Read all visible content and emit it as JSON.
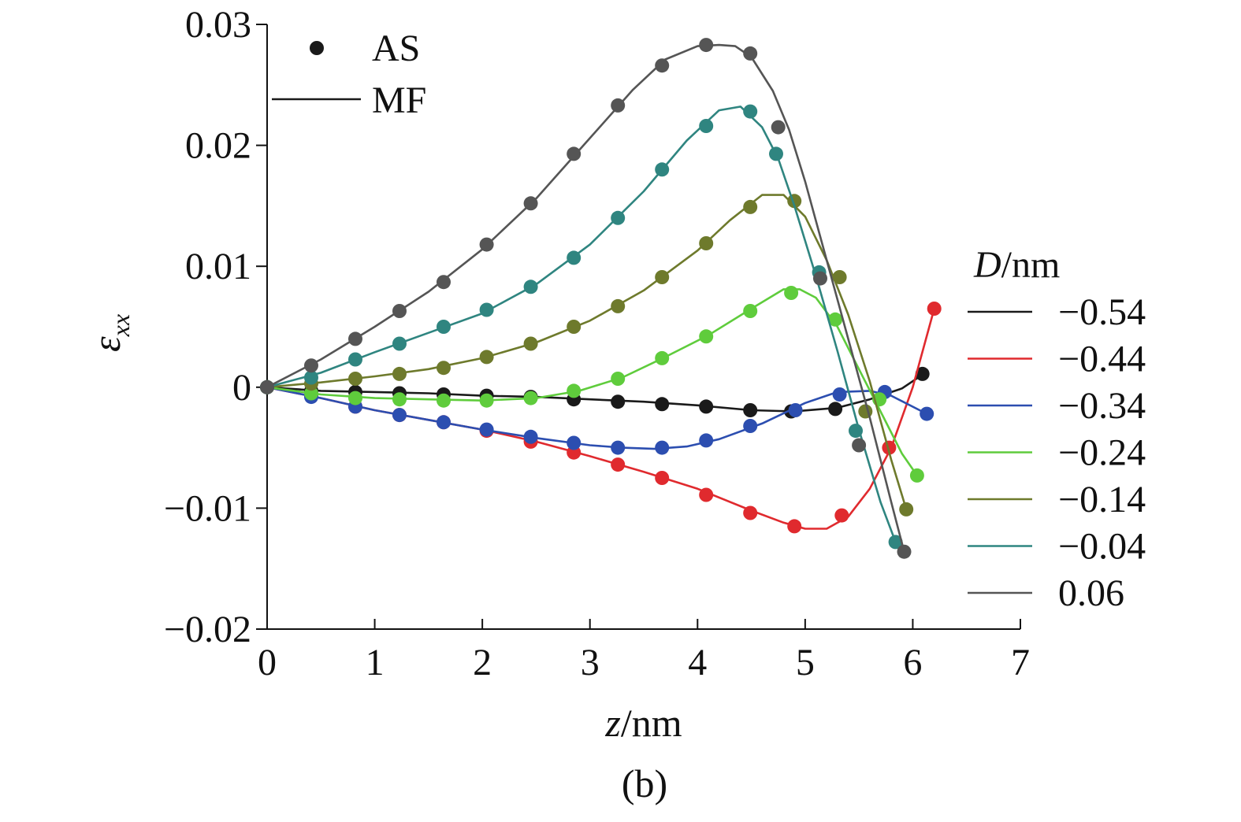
{
  "chart_data": {
    "type": "line",
    "caption": "(b)",
    "xlabel": {
      "var": "z",
      "unit": "/nm"
    },
    "ylabel": {
      "var": "ε",
      "sub": "xx"
    },
    "xlim": [
      0,
      7
    ],
    "ylim": [
      -0.02,
      0.03
    ],
    "x_ticks": [
      0,
      1,
      2,
      3,
      4,
      5,
      6,
      7
    ],
    "x_tick_labels": [
      "0",
      "1",
      "2",
      "3",
      "4",
      "5",
      "6",
      "7"
    ],
    "y_ticks": [
      -0.02,
      -0.01,
      0,
      0.01,
      0.02,
      0.03
    ],
    "y_tick_labels": [
      "−0.02",
      "−0.01",
      "0",
      "0.01",
      "0.02",
      "0.03"
    ],
    "grid": false,
    "marker_legend": {
      "placement": "top-left",
      "items": [
        {
          "label": "AS",
          "style": "marker"
        },
        {
          "label": "MF",
          "style": "line"
        }
      ]
    },
    "legend": {
      "title": {
        "var": "D",
        "unit": "/nm"
      },
      "placement": "right"
    },
    "series": [
      {
        "name": "−0.54",
        "color": "#1a1a1a",
        "as_x": [
          0,
          0.41,
          0.82,
          1.23,
          1.64,
          2.04,
          2.45,
          2.85,
          3.26,
          3.67,
          4.08,
          4.49,
          4.87,
          5.28,
          6.09
        ],
        "as_y": [
          0,
          -0.0003,
          -0.0004,
          -0.0005,
          -0.0006,
          -0.0007,
          -0.0008,
          -0.001,
          -0.0012,
          -0.0014,
          -0.0016,
          -0.0019,
          -0.002,
          -0.0018,
          0.0011
        ],
        "mf_x": [
          0,
          0.5,
          1,
          1.5,
          2,
          2.5,
          3,
          3.5,
          4,
          4.5,
          4.9,
          5.3,
          5.6,
          5.9,
          6.1
        ],
        "mf_y": [
          0,
          -0.0003,
          -0.0004,
          -0.0005,
          -0.0007,
          -0.0008,
          -0.001,
          -0.0012,
          -0.0015,
          -0.0019,
          -0.002,
          -0.0017,
          -0.001,
          -0.0001,
          0.0011
        ]
      },
      {
        "name": "−0.44",
        "color": "#e02a2e",
        "as_x": [
          0,
          0.41,
          0.82,
          1.23,
          1.64,
          2.04,
          2.45,
          2.85,
          3.26,
          3.67,
          4.08,
          4.49,
          4.9,
          5.34,
          5.78,
          6.2
        ],
        "as_y": [
          0,
          -0.0007,
          -0.0016,
          -0.0023,
          -0.0029,
          -0.0036,
          -0.0045,
          -0.0054,
          -0.0064,
          -0.0075,
          -0.0089,
          -0.0104,
          -0.0115,
          -0.0106,
          -0.005,
          0.0065
        ],
        "mf_x": [
          0,
          0.5,
          1,
          1.5,
          2,
          2.5,
          3,
          3.5,
          4,
          4.5,
          4.8,
          5.0,
          5.2,
          5.4,
          5.6,
          5.8,
          6.0,
          6.2
        ],
        "mf_y": [
          0,
          -0.0009,
          -0.0019,
          -0.0027,
          -0.0035,
          -0.0045,
          -0.0057,
          -0.007,
          -0.0084,
          -0.0102,
          -0.0112,
          -0.0117,
          -0.0117,
          -0.0107,
          -0.0084,
          -0.005,
          0,
          0.0065
        ]
      },
      {
        "name": "−0.34",
        "color": "#2c4eb0",
        "as_x": [
          0,
          0.41,
          0.82,
          1.23,
          1.64,
          2.04,
          2.45,
          2.85,
          3.26,
          3.67,
          4.08,
          4.49,
          4.91,
          5.32,
          5.74,
          6.13
        ],
        "as_y": [
          0,
          -0.0008,
          -0.0016,
          -0.0023,
          -0.0029,
          -0.0035,
          -0.0041,
          -0.0046,
          -0.005,
          -0.005,
          -0.0044,
          -0.0032,
          -0.0019,
          -0.0006,
          -0.0004,
          -0.0022
        ],
        "mf_x": [
          0,
          0.5,
          1,
          1.5,
          2,
          2.5,
          3,
          3.3,
          3.6,
          3.9,
          4.2,
          4.6,
          5.0,
          5.3,
          5.6,
          5.8,
          6.13
        ],
        "mf_y": [
          0,
          -0.0009,
          -0.0019,
          -0.0027,
          -0.0035,
          -0.0042,
          -0.0048,
          -0.005,
          -0.0051,
          -0.0049,
          -0.0043,
          -0.003,
          -0.0013,
          -0.0004,
          -0.0003,
          -0.0007,
          -0.0022
        ]
      },
      {
        "name": "−0.24",
        "color": "#5fcc3c",
        "as_x": [
          0,
          0.41,
          0.82,
          1.23,
          1.64,
          2.04,
          2.45,
          2.85,
          3.26,
          3.67,
          4.08,
          4.49,
          4.87,
          5.28,
          5.69,
          6.04
        ],
        "as_y": [
          0,
          -0.0005,
          -0.0009,
          -0.001,
          -0.0011,
          -0.0011,
          -0.0009,
          -0.0003,
          0.0007,
          0.0024,
          0.0042,
          0.0063,
          0.0078,
          0.0056,
          -0.001,
          -0.0073
        ],
        "mf_x": [
          0,
          0.5,
          1,
          1.5,
          2,
          2.5,
          2.9,
          3.3,
          3.7,
          4.1,
          4.5,
          4.8,
          4.95,
          5.1,
          5.3,
          5.5,
          5.7,
          5.9,
          6.04
        ],
        "mf_y": [
          0,
          -0.0006,
          -0.0009,
          -0.001,
          -0.0011,
          -0.0009,
          -0.0003,
          0.0008,
          0.0025,
          0.0043,
          0.0065,
          0.0081,
          0.0081,
          0.0074,
          0.005,
          0.0015,
          -0.002,
          -0.0055,
          -0.0073
        ]
      },
      {
        "name": "−0.14",
        "color": "#6e7a2c",
        "as_x": [
          0,
          0.41,
          0.82,
          1.23,
          1.64,
          2.04,
          2.45,
          2.85,
          3.26,
          3.67,
          4.08,
          4.49,
          4.9,
          5.32,
          5.56,
          5.94
        ],
        "as_y": [
          0,
          0.0003,
          0.0007,
          0.0011,
          0.0016,
          0.0025,
          0.0036,
          0.005,
          0.0067,
          0.0091,
          0.0119,
          0.0149,
          0.0154,
          0.0091,
          -0.002,
          -0.0101
        ],
        "mf_x": [
          0,
          0.5,
          1,
          1.5,
          2,
          2.5,
          3,
          3.5,
          4,
          4.3,
          4.6,
          4.8,
          5.0,
          5.2,
          5.4,
          5.6,
          5.8,
          5.94
        ],
        "mf_y": [
          0,
          0.0004,
          0.0009,
          0.0015,
          0.0024,
          0.0037,
          0.0055,
          0.008,
          0.0113,
          0.0138,
          0.0159,
          0.0159,
          0.0141,
          0.0105,
          0.006,
          0.0005,
          -0.006,
          -0.0101
        ]
      },
      {
        "name": "−0.04",
        "color": "#2f8580",
        "as_x": [
          0,
          0.41,
          0.82,
          1.23,
          1.64,
          2.04,
          2.45,
          2.85,
          3.26,
          3.67,
          4.08,
          4.49,
          4.73,
          5.13,
          5.47,
          5.84
        ],
        "as_y": [
          0,
          0.0008,
          0.0023,
          0.0036,
          0.005,
          0.0064,
          0.0083,
          0.0107,
          0.014,
          0.018,
          0.0216,
          0.0228,
          0.0193,
          0.0095,
          -0.0036,
          -0.0128
        ],
        "mf_x": [
          0,
          0.5,
          1,
          1.5,
          2,
          2.5,
          3,
          3.5,
          3.9,
          4.2,
          4.4,
          4.6,
          4.75,
          4.9,
          5.1,
          5.3,
          5.5,
          5.7,
          5.84
        ],
        "mf_y": [
          0,
          0.0012,
          0.0029,
          0.0045,
          0.0061,
          0.0085,
          0.0118,
          0.0162,
          0.0204,
          0.0229,
          0.0232,
          0.0215,
          0.0189,
          0.015,
          0.0092,
          0.003,
          -0.0035,
          -0.0095,
          -0.0128
        ]
      },
      {
        "name": "0.06",
        "color": "#555555",
        "as_x": [
          0,
          0.41,
          0.82,
          1.23,
          1.64,
          2.04,
          2.45,
          2.85,
          3.26,
          3.67,
          4.08,
          4.49,
          4.75,
          5.14,
          5.5,
          5.92
        ],
        "as_y": [
          0,
          0.0018,
          0.004,
          0.0063,
          0.0087,
          0.0118,
          0.0152,
          0.0193,
          0.0233,
          0.0266,
          0.0283,
          0.0276,
          0.0215,
          0.009,
          -0.0048,
          -0.0136
        ],
        "mf_x": [
          0,
          0.5,
          1,
          1.5,
          2,
          2.5,
          3,
          3.4,
          3.7,
          4.0,
          4.2,
          4.35,
          4.5,
          4.7,
          4.85,
          5.0,
          5.2,
          5.4,
          5.6,
          5.8,
          5.92
        ],
        "mf_y": [
          0,
          0.0023,
          0.005,
          0.0079,
          0.0114,
          0.0156,
          0.0206,
          0.0246,
          0.0271,
          0.0282,
          0.0283,
          0.0282,
          0.0273,
          0.0245,
          0.0213,
          0.017,
          0.0105,
          0.004,
          -0.0025,
          -0.0095,
          -0.0136
        ]
      }
    ]
  }
}
